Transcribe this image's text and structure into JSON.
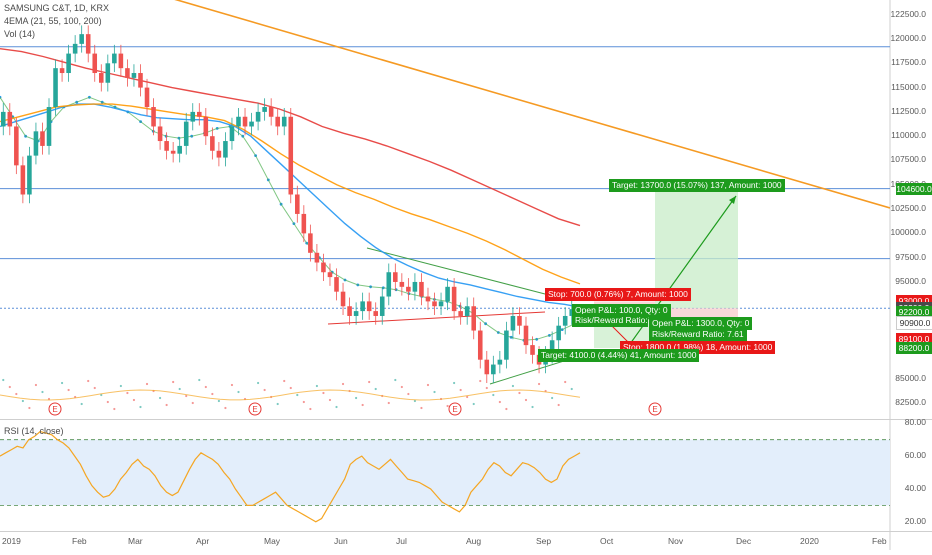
{
  "header": {
    "symbol_line": "SAMSUNG C&T, 1D, KRX",
    "ema_line": "4EMA (21, 55, 100, 200)",
    "vol_line": "Vol (14)"
  },
  "rsi_panel": {
    "title": "RSI (14, close)"
  },
  "colors": {
    "up": "#26a69a",
    "down": "#ef5350",
    "ema21": "#4caf50",
    "ema55": "#2196f3",
    "ema100": "#ff9800",
    "ema200": "#e53935",
    "trendline": "#f59a23",
    "rsi": "#f5a623",
    "green_chip": "#1d9b1d",
    "red_chip": "#e81818"
  },
  "chart_data": {
    "type": "line",
    "price_axis": {
      "ticks": [
        "122500.0",
        "120000.0",
        "117500.0",
        "115000.0",
        "112500.0",
        "110000.0",
        "107500.0",
        "105000.0",
        "102500.0",
        "100000.0",
        "97500.0",
        "95000.0",
        "85000.0",
        "82500.0"
      ],
      "ylim": [
        81000,
        123500
      ]
    },
    "rsi_axis": {
      "ticks": [
        "80.00",
        "60.00",
        "40.00",
        "20.00"
      ],
      "ylim": [
        15,
        82
      ],
      "bands": [
        30,
        70
      ]
    },
    "x_ticks": [
      "2019",
      "Feb",
      "Mar",
      "Apr",
      "May",
      "Jun",
      "Jul",
      "Aug",
      "Sep",
      "Oct",
      "Nov",
      "Dec",
      "2020",
      "Feb"
    ],
    "price_tags": [
      {
        "label": "104600.0",
        "price": 104600,
        "color": "#1d9b1d"
      },
      {
        "label": "93000.0",
        "price": 93000,
        "color": "#e81818"
      },
      {
        "label": "92300.0",
        "price": 92300,
        "color": "#4a4a4a"
      },
      {
        "label": "92200.0",
        "price": 91950,
        "color": "#1d9b1d"
      },
      {
        "label": "90900.0",
        "price": 90900,
        "color": "#ffffff"
      },
      {
        "label": "89100.0",
        "price": 89100,
        "color": "#e81818"
      },
      {
        "label": "88200.0",
        "price": 88200,
        "color": "#1d9b1d"
      }
    ],
    "horizontal_lines": [
      119200,
      104600,
      97400,
      92300
    ],
    "close_series": [
      112500,
      111000,
      107000,
      104000,
      108000,
      110500,
      109000,
      113000,
      117000,
      116500,
      118500,
      119500,
      120500,
      118500,
      116500,
      115500,
      117500,
      118500,
      117000,
      116000,
      116500,
      115000,
      113000,
      111000,
      109500,
      108500,
      108200,
      109000,
      111500,
      112500,
      112000,
      110000,
      108500,
      107800,
      109500,
      111000,
      112000,
      111000,
      111500,
      112500,
      113000,
      112000,
      111000,
      112000,
      104000,
      102000,
      100000,
      98000,
      97000,
      96000,
      95500,
      94000,
      92500,
      91500,
      92000,
      93000,
      92000,
      91500,
      93500,
      96000,
      95000,
      94500,
      94000,
      95000,
      93500,
      93000,
      92500,
      93000,
      94500,
      92000,
      91500,
      92500,
      90000,
      87000,
      85500,
      86500,
      87000,
      90000,
      91500,
      90500,
      88500,
      87500,
      86500,
      87500,
      89000,
      90500,
      91500,
      92200
    ],
    "ema_series": [
      {
        "name": "EMA21",
        "values": [
          114000,
          112000,
          110000,
          109500,
          111500,
          113000,
          113500,
          114000,
          113500,
          113000,
          112500,
          111500,
          110500,
          110000,
          109800,
          110000,
          110300,
          110800,
          111000,
          110000,
          108000,
          105500,
          103000,
          101000,
          99000,
          97500,
          96000,
          95200,
          94700,
          94500,
          94400,
          94200,
          93800,
          93500,
          93200,
          93000,
          92500,
          91800,
          90700,
          89800,
          89300,
          89000,
          89100,
          89500,
          90100,
          90700
        ]
      },
      {
        "name": "EMA55",
        "values": [
          111000,
          111500,
          112000,
          112500,
          113000,
          113300,
          113300,
          113000,
          112600,
          112200,
          111900,
          111800,
          111700,
          111700,
          111500,
          111000,
          110000,
          108500,
          107000,
          105500,
          104000,
          102500,
          101000,
          99700,
          98500,
          97500,
          96700,
          96000,
          95400,
          95000,
          94700,
          94300,
          93900,
          93500,
          93200,
          92900,
          92700,
          92400
        ]
      },
      {
        "name": "EMA100",
        "values": [
          111500,
          112000,
          112500,
          113000,
          113200,
          113300,
          113300,
          113100,
          112800,
          112500,
          112200,
          112000,
          111600,
          110700,
          109500,
          108200,
          107000,
          106000,
          105000,
          104200,
          103500,
          102700,
          102000,
          101400,
          100700,
          100000,
          99200,
          98300,
          97300,
          96300,
          95500,
          94800
        ]
      },
      {
        "name": "EMA200",
        "values": [
          119000,
          118700,
          118200,
          117600,
          117000,
          116500,
          116000,
          115500,
          115000,
          114600,
          114200,
          113800,
          113400,
          112800,
          112000,
          111000,
          110300,
          109700,
          109000,
          108200,
          107400,
          106500,
          105500,
          104500,
          103500,
          102500,
          101500,
          100800
        ]
      }
    ],
    "positions": [
      {
        "target": "Target: 13700.0 (15.07%) 137, Amount: 1000",
        "stop": "Stop: 1800.0 (1.98%) 18, Amount: 1000",
        "open": "Open P&L: 1300.0, Qty: 0",
        "rr": "Risk/Reward Ratio: 7.61"
      },
      {
        "target": "Target: 4100.0 (4.44%) 41, Amount: 1000",
        "stop": "Stop: 700.0 (0.76%) 7, Amount: 1000",
        "open": "Open P&L: 100.0, Qty: 0",
        "rr": "Risk/Reward Ratio: 5.86"
      }
    ],
    "rsi_values": [
      60,
      62,
      64,
      66,
      65,
      70,
      72,
      75,
      74,
      73,
      70,
      68,
      65,
      60,
      55,
      48,
      42,
      38,
      35,
      36,
      40,
      46,
      50,
      55,
      58,
      54,
      52,
      48,
      42,
      38,
      36,
      38,
      45,
      52,
      58,
      62,
      60,
      58,
      55,
      50,
      46,
      40,
      35,
      30,
      30,
      32,
      34,
      36,
      38,
      34,
      30,
      28,
      26,
      24,
      22,
      20,
      22,
      28,
      34,
      40,
      46,
      55,
      58,
      60,
      56,
      54,
      52,
      55,
      58,
      54,
      50,
      46,
      45,
      44,
      42,
      40,
      36,
      32,
      30,
      28,
      26,
      30,
      38,
      42,
      46,
      52,
      56,
      54,
      50,
      48,
      52,
      56,
      55,
      53,
      50,
      46,
      44,
      46,
      54,
      58,
      60,
      62
    ]
  }
}
